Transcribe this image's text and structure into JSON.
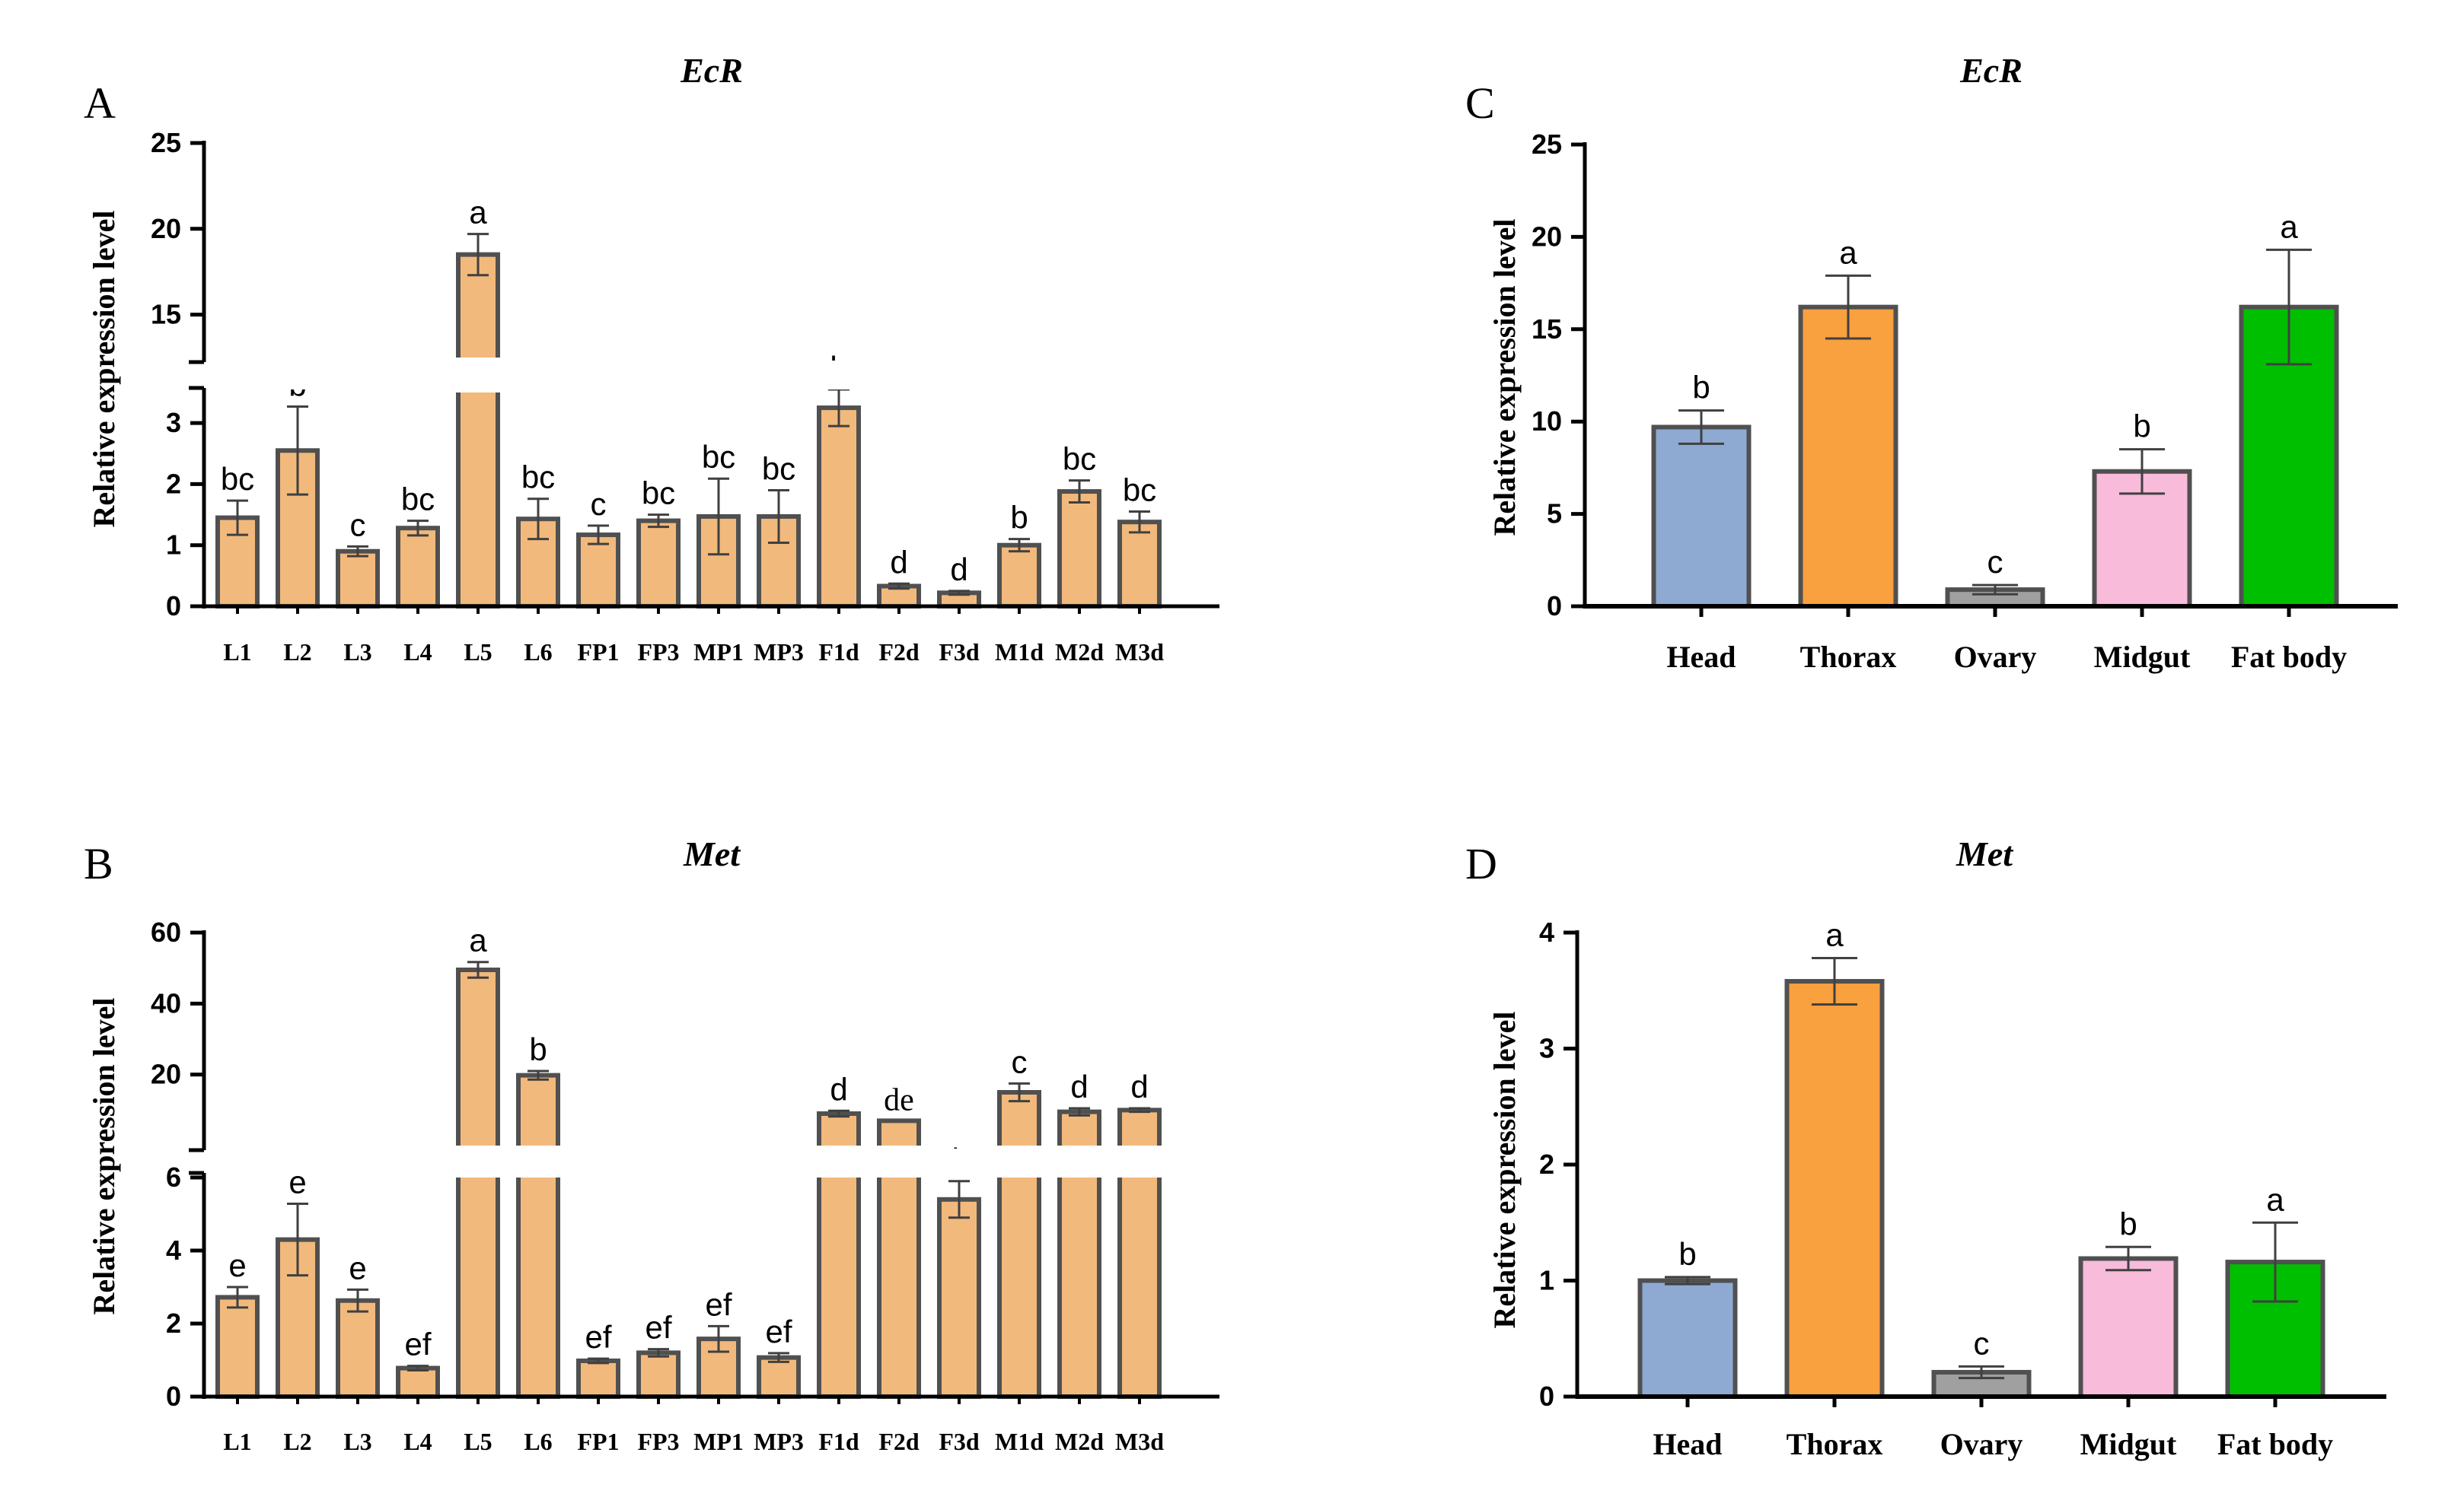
{
  "chart_data": [
    {
      "panel": "A",
      "type": "bar",
      "title": "EcR",
      "xlabel": "",
      "ylabel": "Relative expression level",
      "broken_axis": {
        "lower_range": [
          0,
          3.5
        ],
        "upper_range": [
          12.5,
          25
        ],
        "lower_ticks": [
          0,
          1,
          2,
          3
        ],
        "upper_ticks": [
          15,
          20,
          25
        ]
      },
      "bar_color": "#F2B97C",
      "categories": [
        "L1",
        "L2",
        "L3",
        "L4",
        "L5",
        "L6",
        "FP1",
        "FP3",
        "MP1",
        "MP3",
        "F1d",
        "F2d",
        "F3d",
        "M1d",
        "M2d",
        "M3d"
      ],
      "values": [
        1.45,
        2.55,
        0.9,
        1.28,
        18.5,
        1.43,
        1.17,
        1.4,
        1.47,
        1.47,
        3.25,
        0.33,
        0.22,
        1.0,
        1.88,
        1.38
      ],
      "errors": [
        0.28,
        0.72,
        0.08,
        0.12,
        1.2,
        0.33,
        0.15,
        0.1,
        0.62,
        0.43,
        0.3,
        0.04,
        0.03,
        0.1,
        0.18,
        0.17
      ],
      "significance": [
        "bc",
        "b",
        "c",
        "bc",
        "a",
        "bc",
        "c",
        "bc",
        "bc",
        "bc",
        "b",
        "d",
        "d",
        "b",
        "bc",
        "bc"
      ]
    },
    {
      "panel": "B",
      "type": "bar",
      "title": "Met",
      "xlabel": "",
      "ylabel": "Relative expression level",
      "broken_axis": {
        "lower_range": [
          0,
          6
        ],
        "upper_range": [
          0,
          60
        ],
        "lower_ticks": [
          0,
          2,
          4,
          6
        ],
        "upper_ticks": [
          20,
          40,
          60
        ]
      },
      "bar_color": "#F2B97C",
      "categories": [
        "L1",
        "L2",
        "L3",
        "L4",
        "L5",
        "L6",
        "FP1",
        "FP3",
        "MP1",
        "MP3",
        "F1d",
        "F2d",
        "F3d",
        "M1d",
        "M2d",
        "M3d"
      ],
      "values": [
        2.72,
        4.3,
        2.63,
        0.78,
        49.5,
        19.8,
        0.98,
        1.2,
        1.58,
        1.07,
        9.0,
        7.0,
        5.4,
        15.0,
        9.5,
        10.0
      ],
      "errors": [
        0.28,
        0.98,
        0.3,
        0.06,
        2.2,
        1.2,
        0.06,
        0.1,
        0.35,
        0.12,
        0.8,
        0.0,
        0.5,
        2.5,
        1.0,
        0.5
      ],
      "significance": [
        "e",
        "e",
        "e",
        "ef",
        "a",
        "b",
        "ef",
        "ef",
        "ef",
        "ef",
        "d",
        "de",
        "de",
        "c",
        "d",
        "d"
      ]
    },
    {
      "panel": "C",
      "type": "bar",
      "title": "EcR",
      "xlabel": "",
      "ylabel": "Relative expression level",
      "ylim": [
        0,
        25
      ],
      "yticks": [
        0,
        5,
        10,
        15,
        20,
        25
      ],
      "categories": [
        "Head",
        "Thorax",
        "Ovary",
        "Midgut",
        "Fat body"
      ],
      "values": [
        9.7,
        16.2,
        0.9,
        7.3,
        16.2
      ],
      "errors": [
        0.9,
        1.7,
        0.25,
        1.2,
        3.1
      ],
      "colors": [
        "#8EAAD2",
        "#F9A03F",
        "#A0A0A0",
        "#F8BBD9",
        "#00BF00"
      ],
      "significance": [
        "b",
        "a",
        "c",
        "b",
        "a"
      ]
    },
    {
      "panel": "D",
      "type": "bar",
      "title": "Met",
      "xlabel": "",
      "ylabel": "Relative expression level",
      "ylim": [
        0,
        4
      ],
      "yticks": [
        0,
        1,
        2,
        3,
        4
      ],
      "categories": [
        "Head",
        "Thorax",
        "Ovary",
        "Midgut",
        "Fat body"
      ],
      "values": [
        1.0,
        3.58,
        0.21,
        1.19,
        1.16
      ],
      "errors": [
        0.03,
        0.2,
        0.05,
        0.1,
        0.34
      ],
      "colors": [
        "#8EAAD2",
        "#F9A03F",
        "#A0A0A0",
        "#F8BBD9",
        "#00BF00"
      ],
      "significance": [
        "b",
        "a",
        "c",
        "b",
        "a"
      ]
    }
  ]
}
